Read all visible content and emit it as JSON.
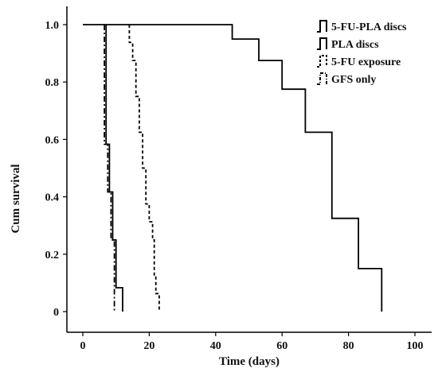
{
  "chart_data": {
    "type": "line",
    "title": "",
    "xlabel": "Time (days)",
    "ylabel": "Cum survival",
    "xlim": [
      0,
      100
    ],
    "ylim": [
      0,
      1.0
    ],
    "x_ticks": [
      "0",
      "20",
      "40",
      "60",
      "80",
      "100"
    ],
    "y_ticks": [
      "0",
      "0.2",
      "0.4",
      "0.6",
      "0.8",
      "1.0"
    ],
    "step": true,
    "grid": false,
    "legend_position": "top-right",
    "series": [
      {
        "name": "5-FU-PLA discs",
        "dash": "solid",
        "points": [
          [
            0,
            1.0
          ],
          [
            45,
            1.0
          ],
          [
            45,
            0.95
          ],
          [
            53,
            0.95
          ],
          [
            53,
            0.875
          ],
          [
            60,
            0.875
          ],
          [
            60,
            0.775
          ],
          [
            67,
            0.775
          ],
          [
            67,
            0.625
          ],
          [
            75,
            0.625
          ],
          [
            75,
            0.325
          ],
          [
            83,
            0.325
          ],
          [
            83,
            0.15
          ],
          [
            90,
            0.15
          ],
          [
            90,
            0.0
          ]
        ]
      },
      {
        "name": "PLA discs",
        "dash": "solid",
        "points": [
          [
            7,
            1.0
          ],
          [
            7,
            0.583
          ],
          [
            8,
            0.583
          ],
          [
            8,
            0.417
          ],
          [
            9,
            0.417
          ],
          [
            9,
            0.25
          ],
          [
            10,
            0.25
          ],
          [
            10,
            0.083
          ],
          [
            12,
            0.083
          ],
          [
            12,
            0.0
          ]
        ]
      },
      {
        "name": "5-FU exposure",
        "dash": "dashed",
        "points": [
          [
            14,
            1.0
          ],
          [
            14,
            0.938
          ],
          [
            15,
            0.938
          ],
          [
            15,
            0.875
          ],
          [
            16,
            0.875
          ],
          [
            16,
            0.75
          ],
          [
            17,
            0.75
          ],
          [
            17,
            0.625
          ],
          [
            18,
            0.625
          ],
          [
            18,
            0.5
          ],
          [
            19,
            0.5
          ],
          [
            19,
            0.375
          ],
          [
            20,
            0.375
          ],
          [
            20,
            0.313
          ],
          [
            21,
            0.313
          ],
          [
            21,
            0.25
          ],
          [
            21.5,
            0.25
          ],
          [
            21.5,
            0.125
          ],
          [
            22,
            0.125
          ],
          [
            22,
            0.063
          ],
          [
            23,
            0.063
          ],
          [
            23,
            0.0
          ]
        ]
      },
      {
        "name": "GFS only",
        "dash": "dash-dot",
        "points": [
          [
            6.5,
            1.0
          ],
          [
            6.5,
            0.583
          ],
          [
            7.5,
            0.583
          ],
          [
            7.5,
            0.417
          ],
          [
            8.5,
            0.417
          ],
          [
            8.5,
            0.25
          ],
          [
            9.5,
            0.25
          ],
          [
            9.5,
            0.0
          ]
        ]
      }
    ]
  }
}
